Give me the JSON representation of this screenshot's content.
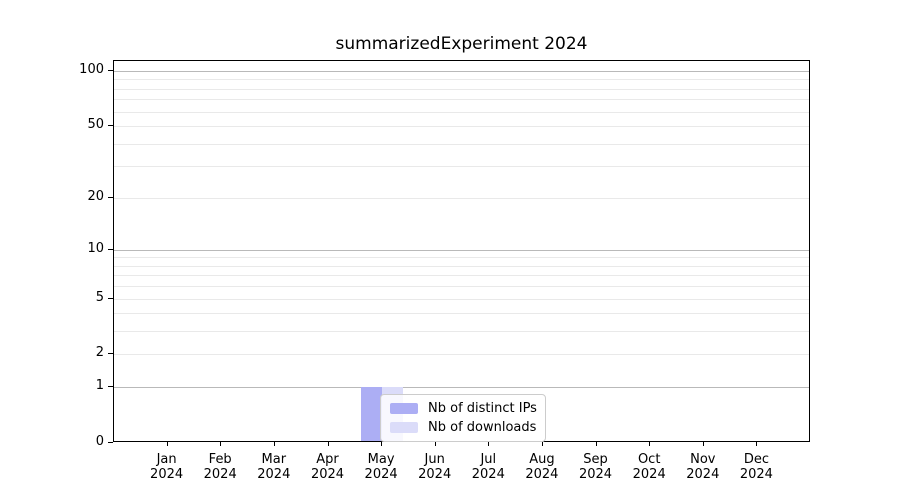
{
  "chart_data": {
    "type": "bar",
    "title": "summarizedExperiment 2024",
    "categories": [
      "Jan 2024",
      "Feb 2024",
      "Mar 2024",
      "Apr 2024",
      "May 2024",
      "Jun 2024",
      "Jul 2024",
      "Aug 2024",
      "Sep 2024",
      "Oct 2024",
      "Nov 2024",
      "Dec 2024"
    ],
    "series": [
      {
        "name": "Nb of distinct IPs",
        "color": "#acaef4",
        "values": [
          0,
          0,
          0,
          0,
          1,
          0,
          0,
          0,
          0,
          0,
          0,
          0
        ]
      },
      {
        "name": "Nb of downloads",
        "color": "#dbdcf9",
        "values": [
          0,
          0,
          0,
          0,
          1,
          0,
          0,
          0,
          0,
          0,
          0,
          0
        ]
      }
    ],
    "xlabel": "",
    "ylabel": "",
    "y_scale": "log10(value+1)",
    "ylim": [
      0,
      113
    ],
    "yticks_labeled": [
      0,
      1,
      2,
      5,
      10,
      20,
      50,
      100
    ],
    "ygrid_major": [
      1,
      10,
      100
    ],
    "ygrid_minor": [
      2,
      3,
      4,
      5,
      6,
      7,
      8,
      9,
      20,
      30,
      40,
      50,
      60,
      70,
      80,
      90
    ],
    "grid": "horizontal only",
    "legend_position": "bottom, overlapping May bars"
  },
  "style": {
    "background": "#ffffff",
    "spine": "#000000",
    "major_grid": "#b9b9b9",
    "minor_grid": "#e9e9e9",
    "legend_border": "#cccccc",
    "bar_distinct_ips": "#acaef4",
    "bar_downloads": "#dbdcf9"
  }
}
